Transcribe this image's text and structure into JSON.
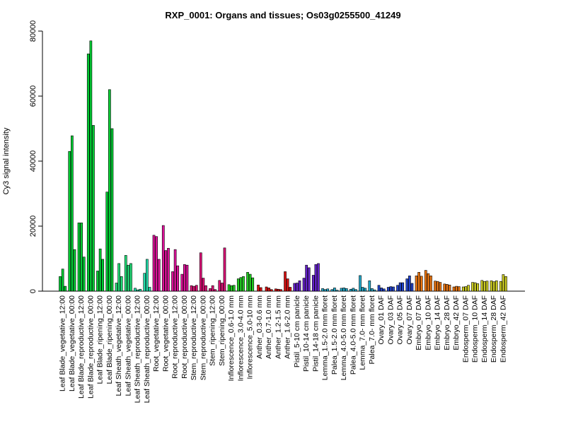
{
  "chart_data": {
    "type": "bar",
    "title": "RXP_0001: Organs and tissues; Os03g0255500_41249",
    "xlabel": "",
    "ylabel": "Cy3 signal intensity",
    "ylim": [
      0,
      80000
    ],
    "yticks": [
      0,
      20000,
      40000,
      60000,
      80000
    ],
    "grid": false,
    "legend": "none",
    "groups": [
      {
        "label": "Leaf Blade_vegetative_12:00",
        "color": "#00cc33",
        "values": [
          4500,
          6800,
          1500
        ]
      },
      {
        "label": "Leaf Blade_vegetative_00:00",
        "color": "#00cc33",
        "values": [
          43000,
          47800,
          12800
        ]
      },
      {
        "label": "Leaf Blade_reproductive_12:00",
        "color": "#00cc33",
        "values": [
          21000,
          21000,
          10500
        ]
      },
      {
        "label": "Leaf Blade_reproductive_00:00",
        "color": "#00cc33",
        "values": [
          73000,
          77000,
          51000
        ]
      },
      {
        "label": "Leaf Blade_ripening_12:00",
        "color": "#00cc33",
        "values": [
          6200,
          13000,
          9800
        ]
      },
      {
        "label": "Leaf Blade_ripening_00:00",
        "color": "#00cc33",
        "values": [
          30500,
          62000,
          50000
        ]
      },
      {
        "label": "Leaf Sheath_vegetative_12:00",
        "color": "#22dd77",
        "values": [
          2500,
          8500,
          4500
        ]
      },
      {
        "label": "Leaf Sheath_vegetative_00:00",
        "color": "#22dd77",
        "values": [
          11000,
          8000,
          8500
        ]
      },
      {
        "label": "Leaf Sheath_reproductive_12:00",
        "color": "#22ddaa",
        "values": [
          900,
          400,
          600
        ]
      },
      {
        "label": "Leaf Sheath_reproductive_00:00",
        "color": "#22ddaa",
        "values": [
          5500,
          9800,
          1200
        ]
      },
      {
        "label": "Root_vegetative_12:00",
        "color": "#dd1199",
        "values": [
          17200,
          16800,
          9800
        ]
      },
      {
        "label": "Root_vegetative_00:00",
        "color": "#dd1199",
        "values": [
          20200,
          12500,
          13200
        ]
      },
      {
        "label": "Root_reproductive_12:00",
        "color": "#dd1199",
        "values": [
          6000,
          12800,
          7800
        ]
      },
      {
        "label": "Root_reproductive_00:00",
        "color": "#dd1199",
        "values": [
          5200,
          8200,
          8000
        ]
      },
      {
        "label": "Stem_reproductive_12:00",
        "color": "#dd1177",
        "values": [
          1700,
          1500,
          1800
        ]
      },
      {
        "label": "Stem_reproductive_00:00",
        "color": "#dd1177",
        "values": [
          11800,
          4000,
          1700
        ]
      },
      {
        "label": "Stem_ripening_12:00",
        "color": "#dd1177",
        "values": [
          800,
          1700,
          500
        ]
      },
      {
        "label": "Stem_ripening_00:00",
        "color": "#dd1177",
        "values": [
          3300,
          2500,
          13300
        ]
      },
      {
        "label": "Inflorescence_0.6-1.0 mm",
        "color": "#22cc22",
        "values": [
          2000,
          1700,
          1800
        ]
      },
      {
        "label": "Inflorescence_3.0-4.0 mm",
        "color": "#22cc22",
        "values": [
          3800,
          4200,
          4500
        ]
      },
      {
        "label": "Inflorescence_5.0-10 mm",
        "color": "#22cc22",
        "values": [
          5800,
          5200,
          4100
        ]
      },
      {
        "label": "Anther_0.3-0.6 mm",
        "color": "#dd1111",
        "values": [
          1900,
          1100
        ]
      },
      {
        "label": "Anther_0.7-1.0 mm",
        "color": "#dd1111",
        "values": [
          1300,
          1000,
          500
        ]
      },
      {
        "label": "Anther_1.2-1.5 mm",
        "color": "#dd1111",
        "values": [
          700,
          600,
          500
        ]
      },
      {
        "label": "Anther_1.6-2.0 mm",
        "color": "#dd1111",
        "values": [
          6000,
          3800,
          1200
        ]
      },
      {
        "label": "Pistil_5-10 cm panicle",
        "color": "#6622cc",
        "values": [
          2400,
          2500,
          3200
        ]
      },
      {
        "label": "Pistil_10-14 cm panicle",
        "color": "#6622cc",
        "values": [
          4000,
          8000,
          7200
        ]
      },
      {
        "label": "Pistil_14-18 cm panicle",
        "color": "#6622cc",
        "values": [
          4900,
          8200,
          8500
        ]
      },
      {
        "label": "Lemma_1.5-2.0 mm floret",
        "color": "#22aacc",
        "values": [
          800,
          500,
          700
        ]
      },
      {
        "label": "Palea_1.5-2.0 mm floret",
        "color": "#22aacc",
        "values": [
          500,
          1000,
          300
        ]
      },
      {
        "label": "Lemma_4.0-5.0 mm floret",
        "color": "#22aacc",
        "values": [
          900,
          1000,
          800
        ]
      },
      {
        "label": "Palea_4.0-5.0 mm floret",
        "color": "#22aacc",
        "values": [
          600,
          900,
          500
        ]
      },
      {
        "label": "Lemma_7.0- mm floret",
        "color": "#22aacc",
        "values": [
          4800,
          1200,
          900
        ]
      },
      {
        "label": "Palea_7.0- mm floret",
        "color": "#22aacc",
        "values": [
          3200,
          800,
          400
        ]
      },
      {
        "label": "Ovary_01 DAF",
        "color": "#2244cc",
        "values": [
          1800,
          1000,
          700
        ]
      },
      {
        "label": "Ovary_03 DAF",
        "color": "#2244cc",
        "values": [
          1200,
          1400,
          1300
        ]
      },
      {
        "label": "Ovary_05 DAF",
        "color": "#2244cc",
        "values": [
          1800,
          2600,
          2600
        ]
      },
      {
        "label": "Ovary_07 DAF",
        "color": "#2244cc",
        "values": [
          3800,
          4700,
          2400
        ]
      },
      {
        "label": "Embryo_07 DAF",
        "color": "#ee7711",
        "values": [
          4700,
          5800,
          4600
        ]
      },
      {
        "label": "Embryo_10 DAF",
        "color": "#ee7711",
        "values": [
          6400,
          5400,
          4700
        ]
      },
      {
        "label": "Embryo_14 DAF",
        "color": "#ee7711",
        "values": [
          3100,
          3000,
          2700
        ]
      },
      {
        "label": "Embryo_28 DAF",
        "color": "#ee7711",
        "values": [
          2200,
          2100,
          1900
        ]
      },
      {
        "label": "Embryo_42 DAF",
        "color": "#ee7711",
        "values": [
          1300,
          1500,
          1400
        ]
      },
      {
        "label": "Endosperm_07 DAF",
        "color": "#cccc22",
        "values": [
          1300,
          1400,
          1800
        ]
      },
      {
        "label": "Endosperm_10 DAF",
        "color": "#cccc22",
        "values": [
          2700,
          2600,
          2300
        ]
      },
      {
        "label": "Endosperm_14 DAF",
        "color": "#cccc22",
        "values": [
          3300,
          3000,
          3100
        ]
      },
      {
        "label": "Endosperm_28 DAF",
        "color": "#cccc22",
        "values": [
          3200,
          2900,
          3200
        ]
      },
      {
        "label": "Endosperm_42 DAF",
        "color": "#cccc22",
        "values": [
          3000,
          5100,
          4500
        ]
      }
    ],
    "categories": [
      "Leaf Blade_vegetative_12:00",
      "Leaf Blade_vegetative_00:00",
      "Leaf Blade_reproductive_12:00",
      "Leaf Blade_reproductive_00:00",
      "Leaf Blade_ripening_12:00",
      "Leaf Blade_ripening_00:00",
      "Leaf Sheath_vegetative_12:00",
      "Leaf Sheath_vegetative_00:00",
      "Leaf Sheath_reproductive_12:00",
      "Leaf Sheath_reproductive_00:00",
      "Root_vegetative_12:00",
      "Root_vegetative_00:00",
      "Root_reproductive_12:00",
      "Root_reproductive_00:00",
      "Stem_reproductive_12:00",
      "Stem_reproductive_00:00",
      "Stem_ripening_12:00",
      "Stem_ripening_00:00",
      "Inflorescence_0.6-1.0 mm",
      "Inflorescence_3.0-4.0 mm",
      "Inflorescence_5.0-10 mm",
      "Anther_0.3-0.6 mm",
      "Anther_0.7-1.0 mm",
      "Anther_1.2-1.5 mm",
      "Anther_1.6-2.0 mm",
      "Pistil_5-10 cm panicle",
      "Pistil_10-14 cm panicle",
      "Pistil_14-18 cm panicle",
      "Lemma_1.5-2.0 mm floret",
      "Palea_1.5-2.0 mm floret",
      "Lemma_4.0-5.0 mm floret",
      "Palea_4.0-5.0 mm floret",
      "Lemma_7.0- mm floret",
      "Palea_7.0- mm floret",
      "Ovary_01 DAF",
      "Ovary_03 DAF",
      "Ovary_05 DAF",
      "Ovary_07 DAF",
      "Embryo_07 DAF",
      "Embryo_10 DAF",
      "Embryo_14 DAF",
      "Embryo_28 DAF",
      "Embryo_42 DAF",
      "Endosperm_07 DAF",
      "Endosperm_10 DAF",
      "Endosperm_14 DAF",
      "Endosperm_28 DAF",
      "Endosperm_42 DAF"
    ]
  }
}
